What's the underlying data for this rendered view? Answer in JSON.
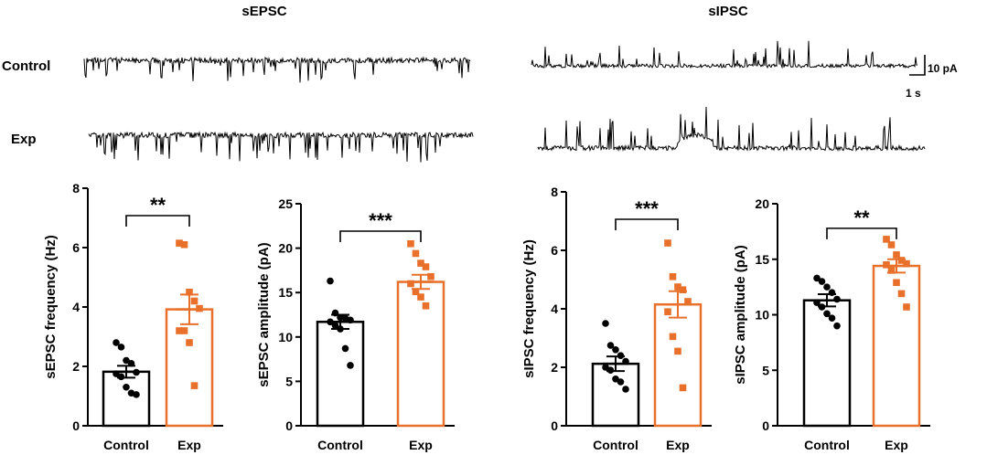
{
  "figure": {
    "sepsc_title": "sEPSC",
    "sipsc_title": "sIPSC",
    "row_control": "Control",
    "row_exp": "Exp",
    "scale_y": "10 pA",
    "scale_x": "1 s"
  },
  "colors": {
    "control": "#000000",
    "exp": "#e8702a"
  },
  "chart_data": [
    {
      "type": "bar",
      "title": "",
      "categories": [
        "Control",
        "Exp"
      ],
      "ylabel": "sEPSC frequency (Hz)",
      "ylim": [
        0,
        8
      ],
      "yticks": [
        "0",
        "2",
        "4",
        "6",
        "8"
      ],
      "means": [
        1.82,
        3.92
      ],
      "sem": [
        0.2,
        0.5
      ],
      "points": [
        [
          2.8,
          2.65,
          2.2,
          2.1,
          1.8,
          1.75,
          1.65,
          1.3,
          1.1,
          1.05
        ],
        [
          6.15,
          6.1,
          4.5,
          4.2,
          3.95,
          3.2,
          3.2,
          2.8,
          1.35
        ]
      ],
      "significance": "**"
    },
    {
      "type": "bar",
      "title": "",
      "categories": [
        "Control",
        "Exp"
      ],
      "ylabel": "sEPSC amplitude (pA)",
      "ylim": [
        0,
        25
      ],
      "yticks": [
        "0",
        "5",
        "10",
        "15",
        "20",
        "25"
      ],
      "means": [
        11.7,
        16.2
      ],
      "sem": [
        0.8,
        0.8
      ],
      "points": [
        [
          16.3,
          12.7,
          12.2,
          12.1,
          11.9,
          11.7,
          11.3,
          10.9,
          8.7,
          6.8
        ],
        [
          20.5,
          19.4,
          18.3,
          17.9,
          16.8,
          16.0,
          15.1,
          14.5,
          13.5
        ]
      ],
      "significance": "***"
    },
    {
      "type": "bar",
      "title": "",
      "categories": [
        "Control",
        "Exp"
      ],
      "ylabel": "sIPSC frequency (Hz)",
      "ylim": [
        0,
        8
      ],
      "yticks": [
        "0",
        "2",
        "4",
        "6",
        "8"
      ],
      "means": [
        2.12,
        4.15
      ],
      "sem": [
        0.25,
        0.45
      ],
      "points": [
        [
          3.5,
          2.75,
          2.6,
          2.4,
          2.2,
          2.0,
          1.9,
          1.6,
          1.5,
          1.25
        ],
        [
          6.25,
          5.1,
          4.75,
          4.65,
          4.25,
          3.9,
          3.05,
          2.55,
          1.3
        ]
      ],
      "significance": "***"
    },
    {
      "type": "bar",
      "title": "",
      "categories": [
        "Control",
        "Exp"
      ],
      "ylabel": "sIPSC amplitude (pA)",
      "ylim": [
        0,
        20
      ],
      "yticks": [
        "0",
        "5",
        "10",
        "15",
        "20"
      ],
      "means": [
        11.3,
        14.4
      ],
      "sem": [
        0.55,
        0.6
      ],
      "points": [
        [
          13.3,
          13.0,
          12.5,
          12.0,
          11.4,
          11.1,
          10.7,
          10.1,
          9.7,
          9.0
        ],
        [
          16.8,
          16.3,
          15.4,
          14.9,
          14.6,
          14.5,
          14.0,
          12.9,
          11.9,
          10.7
        ]
      ],
      "significance": "**"
    }
  ]
}
